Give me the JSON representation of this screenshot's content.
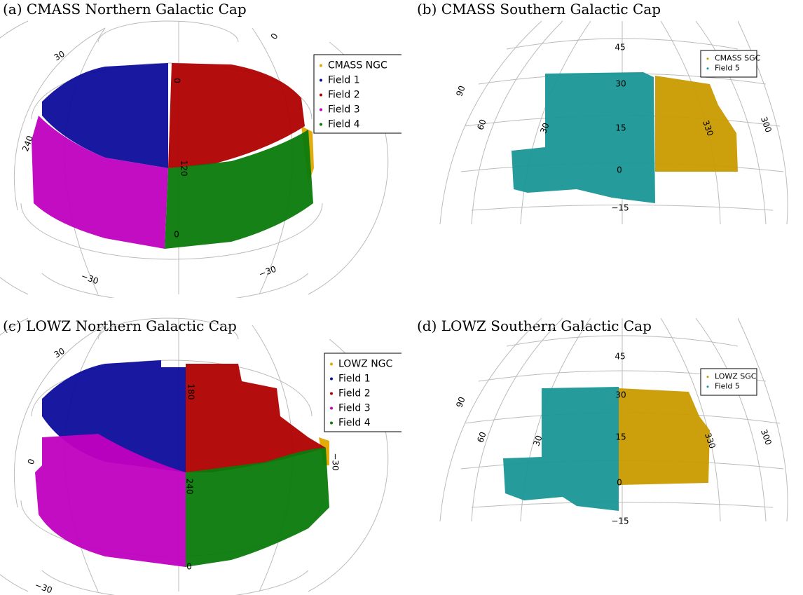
{
  "panels": [
    {
      "caption": "(a) CMASS Northern Galactic Cap",
      "legend": [
        {
          "label": "CMASS NGC",
          "color": "#e0a800"
        },
        {
          "label": "Field 1",
          "color": "#0c0c9c"
        },
        {
          "label": "Field 2",
          "color": "#b00000"
        },
        {
          "label": "Field 3",
          "color": "#c000c0"
        },
        {
          "label": "Field 4",
          "color": "#0a7a0a"
        }
      ],
      "grid_labels": [
        "30",
        "0",
        "0",
        "120",
        "240",
        "0",
        "−30",
        "−30"
      ]
    },
    {
      "caption": "(b) CMASS Southern Galactic Cap",
      "legend": [
        {
          "label": "CMASS SGC",
          "color": "#c99a00"
        },
        {
          "label": "Field 5",
          "color": "#1a9696"
        }
      ],
      "grid_labels": [
        "45",
        "30",
        "15",
        "0",
        "−15",
        "90",
        "60",
        "30",
        "330",
        "300"
      ]
    },
    {
      "caption": "(c) LOWZ Northern Galactic Cap",
      "legend": [
        {
          "label": "LOWZ NGC",
          "color": "#e0a800"
        },
        {
          "label": "Field 1",
          "color": "#0c0c9c"
        },
        {
          "label": "Field 2",
          "color": "#b00000"
        },
        {
          "label": "Field 3",
          "color": "#c000c0"
        },
        {
          "label": "Field 4",
          "color": "#0a7a0a"
        }
      ],
      "grid_labels": [
        "30",
        "180",
        "240",
        "0",
        "0",
        "−30",
        "−30"
      ]
    },
    {
      "caption": "(d) LOWZ Southern Galactic Cap",
      "legend": [
        {
          "label": "LOWZ SGC",
          "color": "#c99a00"
        },
        {
          "label": "Field 5",
          "color": "#1a9696"
        }
      ],
      "grid_labels": [
        "45",
        "30",
        "15",
        "0",
        "−15",
        "90",
        "60",
        "30",
        "330",
        "300"
      ]
    }
  ]
}
